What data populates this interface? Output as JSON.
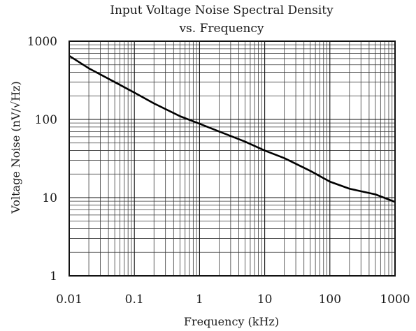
{
  "chart_data": {
    "type": "line",
    "title": "Input Voltage Noise Spectral Density",
    "subtitle": "vs. Frequency",
    "xlabel": "Frequency (kHz)",
    "ylabel": "Voltage Noise (nV/√Hz)",
    "x_scale": "log",
    "y_scale": "log",
    "xlim": [
      0.01,
      1000
    ],
    "ylim": [
      1,
      1000
    ],
    "grid": true,
    "x_ticks": [
      0.01,
      0.1,
      1,
      10,
      100,
      1000
    ],
    "x_tick_labels": [
      "0.01",
      "0.1",
      "1",
      "10",
      "100",
      "1000"
    ],
    "y_ticks": [
      1,
      10,
      100,
      1000
    ],
    "y_tick_labels": [
      "1",
      "10",
      "100",
      "1000"
    ],
    "series": [
      {
        "x": [
          0.01,
          0.02,
          0.05,
          0.1,
          0.2,
          0.5,
          1,
          2,
          5,
          10,
          20,
          50,
          100,
          200,
          500,
          1000
        ],
        "y": [
          650,
          450,
          300,
          220,
          160,
          110,
          88,
          70,
          52,
          40,
          32,
          22,
          16,
          13,
          11,
          8.8
        ]
      }
    ]
  }
}
